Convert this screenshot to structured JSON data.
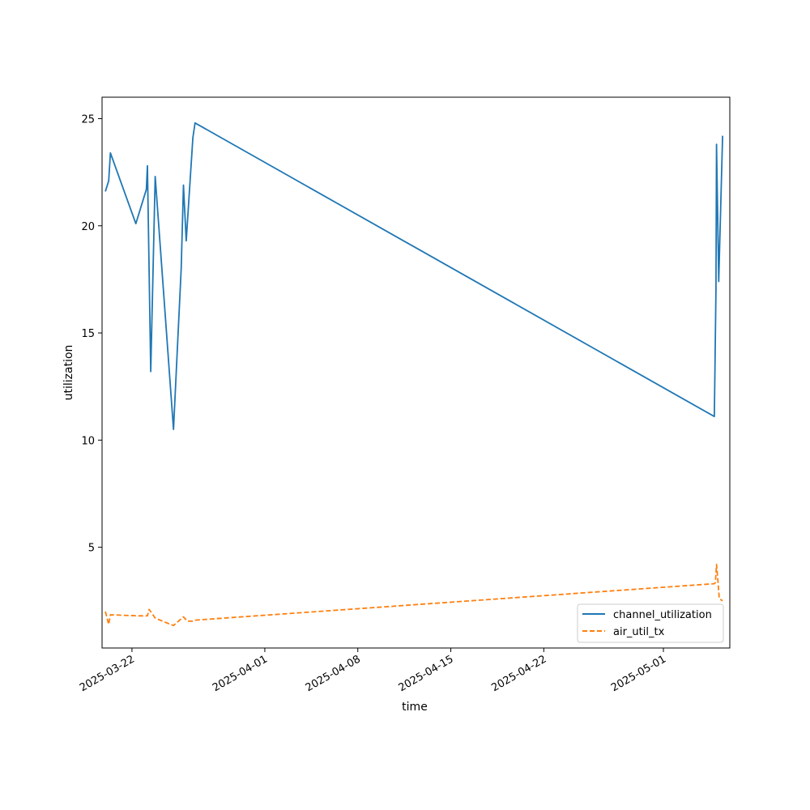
{
  "chart_data": {
    "type": "line",
    "title": "",
    "xlabel": "time",
    "ylabel": "utilization",
    "x_axis_type": "date",
    "xlim": [
      "2025-03-19 18:00",
      "2025-05-06 00:00"
    ],
    "ylim": [
      0.3,
      26
    ],
    "x_ticks": [
      "2025-03-22",
      "2025-04-01",
      "2025-04-08",
      "2025-04-15",
      "2025-04-22",
      "2025-05-01"
    ],
    "y_ticks": [
      5,
      10,
      15,
      20,
      25
    ],
    "grid": false,
    "legend_position": "lower-right",
    "series": [
      {
        "name": "channel_utilization",
        "color": "#1f77b4",
        "linestyle": "solid",
        "points": [
          [
            "2025-03-20 00:00",
            21.6
          ],
          [
            "2025-03-20 06:00",
            22.1
          ],
          [
            "2025-03-20 09:00",
            23.4
          ],
          [
            "2025-03-22 07:00",
            20.1
          ],
          [
            "2025-03-23 02:00",
            21.7
          ],
          [
            "2025-03-23 04:00",
            22.8
          ],
          [
            "2025-03-23 10:00",
            13.2
          ],
          [
            "2025-03-23 18:00",
            22.3
          ],
          [
            "2025-03-25 03:00",
            10.5
          ],
          [
            "2025-03-25 17:00",
            18.0
          ],
          [
            "2025-03-25 21:00",
            21.9
          ],
          [
            "2025-03-26 02:00",
            19.3
          ],
          [
            "2025-03-26 14:00",
            24.1
          ],
          [
            "2025-03-26 18:00",
            24.8
          ],
          [
            "2025-05-04 20:00",
            11.1
          ],
          [
            "2025-05-04 23:00",
            17.0
          ],
          [
            "2025-05-05 00:00",
            23.8
          ],
          [
            "2025-05-05 04:00",
            17.4
          ],
          [
            "2025-05-05 11:00",
            24.2
          ]
        ]
      },
      {
        "name": "air_util_tx",
        "color": "#ff7f0e",
        "linestyle": "dashed",
        "points": [
          [
            "2025-03-20 00:00",
            2.0
          ],
          [
            "2025-03-20 06:00",
            1.4
          ],
          [
            "2025-03-20 09:00",
            1.85
          ],
          [
            "2025-03-22 12:00",
            1.8
          ],
          [
            "2025-03-23 04:00",
            1.8
          ],
          [
            "2025-03-23 07:00",
            2.1
          ],
          [
            "2025-03-23 18:00",
            1.7
          ],
          [
            "2025-03-24 12:00",
            1.5
          ],
          [
            "2025-03-25 03:00",
            1.35
          ],
          [
            "2025-03-25 21:00",
            1.75
          ],
          [
            "2025-03-26 04:00",
            1.55
          ],
          [
            "2025-03-26 14:00",
            1.55
          ],
          [
            "2025-03-26 18:00",
            1.6
          ],
          [
            "2025-05-04 20:00",
            3.3
          ],
          [
            "2025-05-04 22:00",
            3.35
          ],
          [
            "2025-05-05 00:00",
            4.2
          ],
          [
            "2025-05-05 02:00",
            3.6
          ],
          [
            "2025-05-05 05:00",
            2.6
          ],
          [
            "2025-05-05 11:00",
            2.5
          ]
        ]
      }
    ]
  }
}
